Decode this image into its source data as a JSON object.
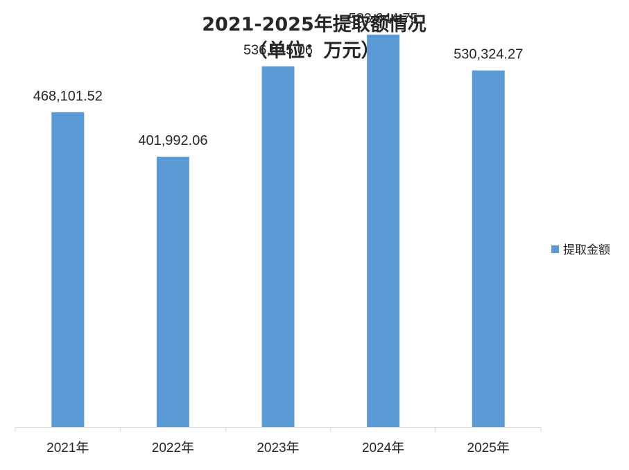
{
  "chart_data": {
    "type": "bar",
    "title": "2021-2025年提取额情况",
    "subtitle": "（单位：万元）",
    "categories": [
      "2021年",
      "2022年",
      "2023年",
      "2024年",
      "2025年"
    ],
    "series": [
      {
        "name": "提取金额",
        "values": [
          468101.52,
          401992.06,
          536545.06,
          583644.75,
          530324.27
        ],
        "labels": [
          "468,101.52",
          "401,992.06",
          "536,545.06",
          "583,644.75",
          "530,324.27"
        ],
        "color": "#5B9BD5"
      }
    ],
    "ylim": [
      0,
      600000
    ],
    "grid": false,
    "legend": "right",
    "xlabel": "",
    "ylabel": ""
  },
  "colors": {
    "bar": "#5B9BD5",
    "axis": "#D9D9D9",
    "text": "#262626",
    "background": "#FFFFFF"
  }
}
